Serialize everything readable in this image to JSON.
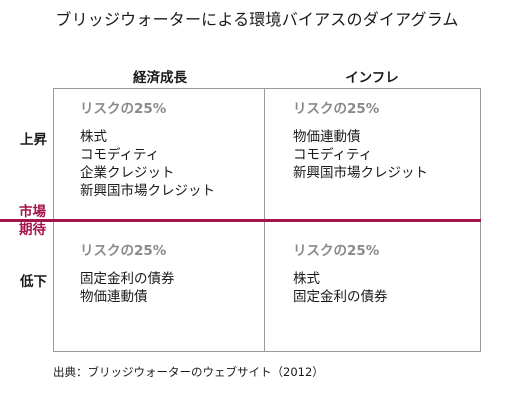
{
  "title": "ブリッジウォーターによる環境バイアスのダイアグラム",
  "columns": {
    "left": "経済成長",
    "right": "インフレ"
  },
  "rows": {
    "up": "上昇",
    "market": "市場期待",
    "down": "低下"
  },
  "quadrants": {
    "top_left": {
      "risk": "リスクの25%",
      "items": [
        "株式",
        "コモディティ",
        "企業クレジット",
        "新興国市場クレジット"
      ]
    },
    "top_right": {
      "risk": "リスクの25%",
      "items": [
        "物価連動債",
        "コモディティ",
        "新興国市場クレジット"
      ]
    },
    "bottom_left": {
      "risk": "リスクの25%",
      "items": [
        "固定金利の債券",
        "物価連動債"
      ]
    },
    "bottom_right": {
      "risk": "リスクの25%",
      "items": [
        "株式",
        "固定金利の債券"
      ]
    }
  },
  "source": "出典：ブリッジウォーターのウェブサイト（2012）",
  "colors": {
    "accent": "#a3144a",
    "border": "#9a9a9a",
    "risk_text": "#8a8a8a"
  }
}
